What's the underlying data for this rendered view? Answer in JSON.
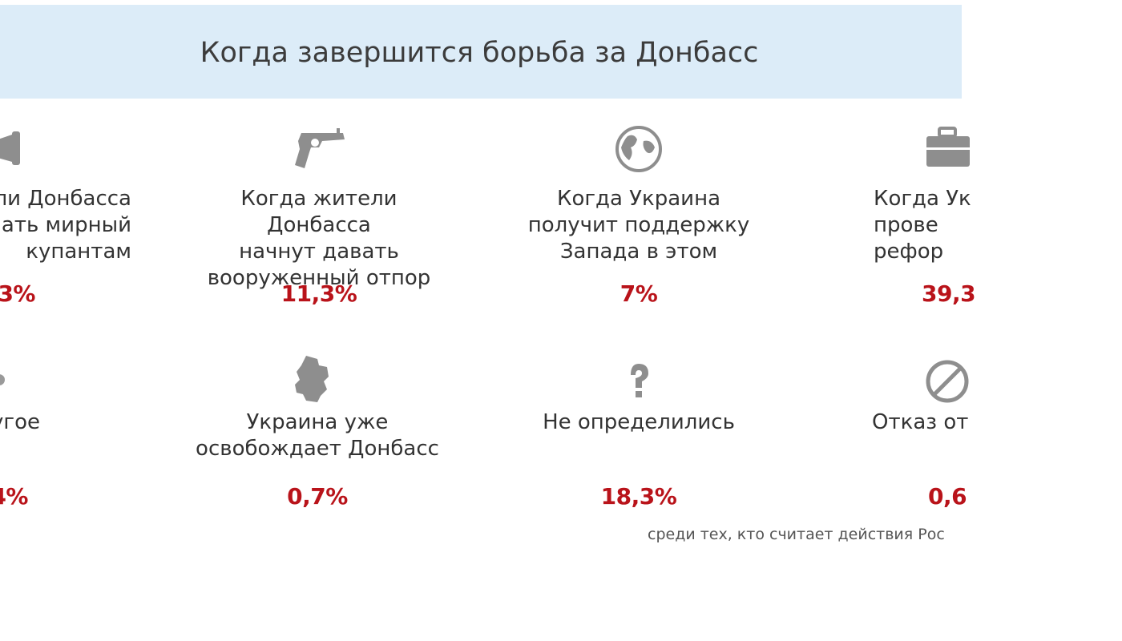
{
  "header": {
    "title": "Когда завершится борьба за Донбасс"
  },
  "items": [
    {
      "icon": "megaphone-icon",
      "label": "ли Донбасса\nать мирный\nкупантам",
      "percent": ",3%"
    },
    {
      "icon": "revolver-icon",
      "label": "Когда жители Донбасса\nначнут давать\nвооруженный отпор",
      "percent": "11,3%"
    },
    {
      "icon": "globe-icon",
      "label": "Когда Украина\nполучит поддержку\nЗапада в этом",
      "percent": "7%"
    },
    {
      "icon": "briefcase-icon",
      "label": "Когда Ук\nпрове\nрефор",
      "percent": "39,3"
    },
    {
      "icon": "ellipsis-icon",
      "label": "угое",
      "percent": "4%"
    },
    {
      "icon": "donbass-map-icon",
      "label": "Украина уже\nосвобождает Донбасс",
      "percent": "0,7%"
    },
    {
      "icon": "question-mark-icon",
      "label": "Не определились",
      "percent": "18,3%"
    },
    {
      "icon": "no-entry-icon",
      "label": "Отказ от",
      "percent": "0,6"
    }
  ],
  "footnote": "среди тех, кто считает действия Рос",
  "colors": {
    "header_bg": "#dcecf8",
    "percent": "#b9131a",
    "icon": "#8e8e8e"
  }
}
